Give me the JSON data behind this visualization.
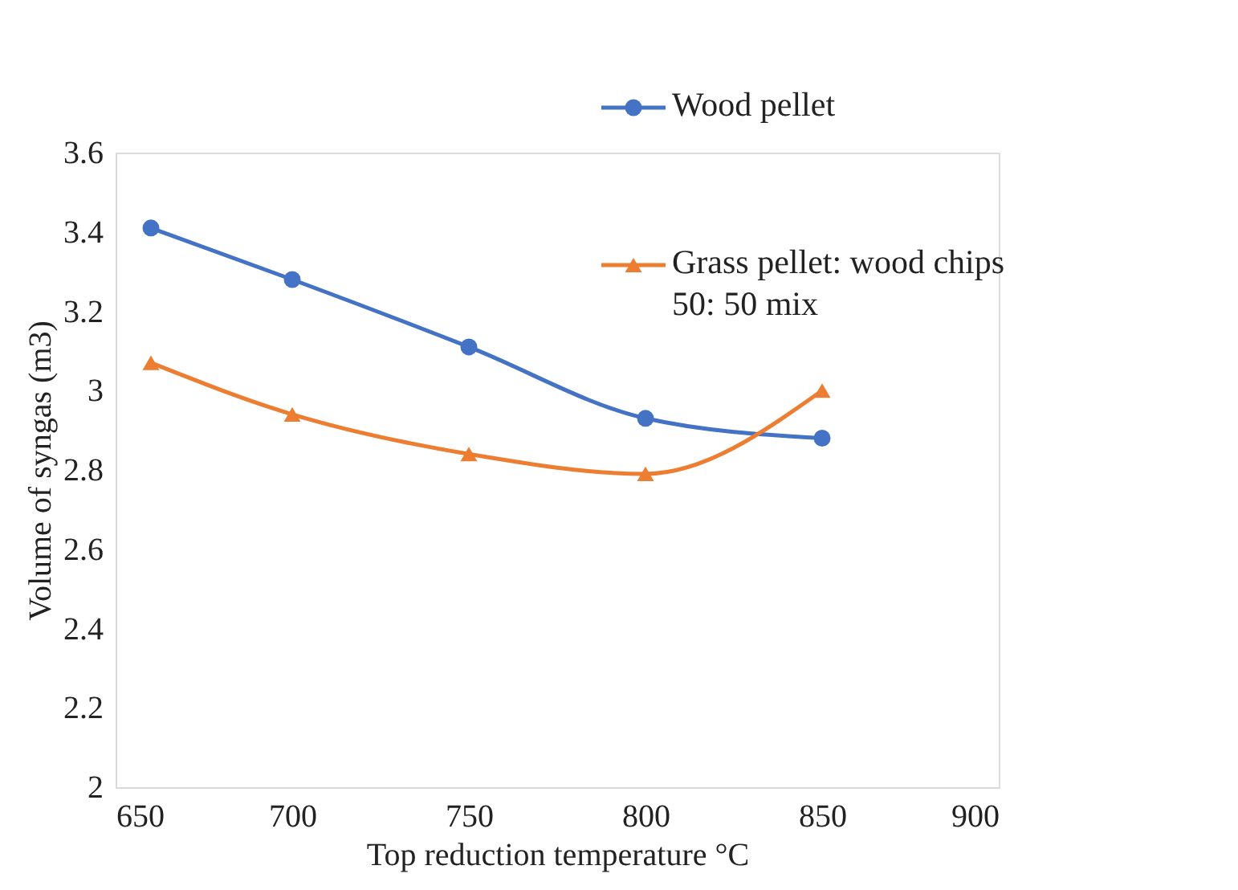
{
  "chart_data": {
    "type": "line",
    "xlabel": "Top reduction temperature °C",
    "ylabel": "Volume of syngas (m3)",
    "x": [
      660,
      700,
      750,
      800,
      850
    ],
    "series": [
      {
        "name": "Wood pellet",
        "color": "#4472c4",
        "marker": "circle",
        "values": [
          3.41,
          3.28,
          3.11,
          2.93,
          2.88
        ]
      },
      {
        "name": "Grass pellet: wood chips 50: 50 mix",
        "color": "#ed7d31",
        "marker": "triangle",
        "values": [
          3.07,
          2.94,
          2.84,
          2.79,
          3.0
        ]
      }
    ],
    "xlim": [
      650,
      900
    ],
    "xticks": [
      650,
      700,
      750,
      800,
      850,
      900
    ],
    "ylim": [
      2,
      3.6
    ],
    "yticks": [
      2,
      2.2,
      2.4,
      2.6,
      2.8,
      3,
      3.2,
      3.4,
      3.6
    ],
    "grid": false,
    "legend": "top right",
    "line_style": "solid"
  }
}
